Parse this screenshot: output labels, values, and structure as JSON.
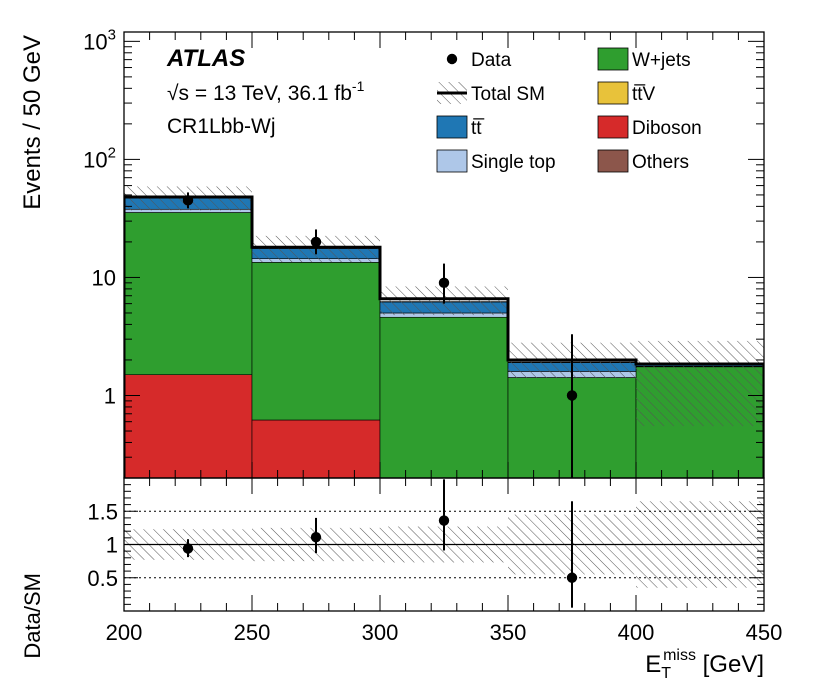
{
  "chart_data": {
    "type": "stacked-histogram-with-ratio",
    "experiment": "ATLAS",
    "energy_label": "√s = 13 TeV, 36.1 fb",
    "lumi_superscript": "-1",
    "region": "CR1Lbb-Wj",
    "ylabel": "Events / 50 GeV",
    "xlabel_main": "E",
    "xlabel_sub": "T",
    "xlabel_sup": "miss",
    "xlabel_unit": " [GeV]",
    "ratio_ylabel": "Data/SM",
    "xlim": [
      200,
      450
    ],
    "ylim": [
      0.2,
      1200
    ],
    "ratio_ylim": [
      0,
      2
    ],
    "yscale": "log",
    "x_ticks": [
      "200",
      "250",
      "300",
      "350",
      "400",
      "450"
    ],
    "y_ticks": [
      {
        "value": 1,
        "label": "1"
      },
      {
        "value": 10,
        "label": "10"
      },
      {
        "value": 100,
        "label": "10",
        "sup": "2"
      },
      {
        "value": 1000,
        "label": "10",
        "sup": "3"
      }
    ],
    "ratio_ticks": [
      {
        "value": 0.5,
        "label": "0.5"
      },
      {
        "value": 1,
        "label": "1"
      },
      {
        "value": 1.5,
        "label": "1.5"
      }
    ],
    "bin_edges": [
      200,
      250,
      300,
      350,
      400,
      450
    ],
    "stack": [
      {
        "name": "Diboson",
        "color": "#d62a2a",
        "values": [
          1.5,
          0.62,
          0,
          0,
          0
        ]
      },
      {
        "name": "W+jets",
        "color": "#2f9e2f",
        "values": [
          34,
          12.8,
          4.6,
          1.42,
          1.75
        ]
      },
      {
        "name": "Single top",
        "color": "#aec7e8",
        "values": [
          2.3,
          1.0,
          0.4,
          0.18,
          0.02
        ]
      },
      {
        "name": "tt̅",
        "color": "#1f77b4",
        "values": [
          9.5,
          3.2,
          1.2,
          0.3,
          0.05
        ]
      },
      {
        "name": "tt̅V",
        "color": "#e8c23a",
        "values": [
          0.2,
          0.05,
          0.02,
          0.01,
          0.005
        ]
      },
      {
        "name": "Others",
        "color": "#8c564b",
        "values": [
          0.1,
          0.05,
          0.02,
          0.01,
          0.005
        ]
      }
    ],
    "total_sm": [
      48,
      18,
      6.6,
      2.0,
      1.85
    ],
    "total_sm_band": [
      {
        "low": 37,
        "high": 59
      },
      {
        "low": 13.5,
        "high": 22.5
      },
      {
        "low": 4.8,
        "high": 8.4
      },
      {
        "low": 1.4,
        "high": 2.8
      },
      {
        "low": 0.55,
        "high": 2.9
      }
    ],
    "data_points": [
      {
        "x": 225,
        "y": 45,
        "err_low": 6.5,
        "err_high": 7.5
      },
      {
        "x": 275,
        "y": 20,
        "err_low": 4.3,
        "err_high": 5.5
      },
      {
        "x": 325,
        "y": 9,
        "err_low": 3.0,
        "err_high": 4.1
      },
      {
        "x": 375,
        "y": 1,
        "err_low": 0.9,
        "err_high": 2.3
      }
    ],
    "ratio_points": [
      {
        "x": 225,
        "y": 0.94,
        "err_low": 0.13,
        "err_high": 0.14
      },
      {
        "x": 275,
        "y": 1.11,
        "err_low": 0.24,
        "err_high": 0.29
      },
      {
        "x": 325,
        "y": 1.36,
        "err_low": 0.45,
        "err_high": 0.62
      },
      {
        "x": 375,
        "y": 0.5,
        "err_low": 0.45,
        "err_high": 1.15
      }
    ],
    "ratio_band": [
      {
        "low": 0.77,
        "high": 1.23
      },
      {
        "low": 0.75,
        "high": 1.25
      },
      {
        "low": 0.73,
        "high": 1.27
      },
      {
        "low": 0.55,
        "high": 1.45
      },
      {
        "low": 0.35,
        "high": 1.65
      }
    ],
    "legend": [
      {
        "label": "Data",
        "kind": "marker",
        "column": 0,
        "row": 0
      },
      {
        "label": "Total SM",
        "kind": "line-hatch",
        "column": 0,
        "row": 1
      },
      {
        "label": "tt̅",
        "kind": "box",
        "color": "#1f77b4",
        "column": 0,
        "row": 2
      },
      {
        "label": "Single top",
        "kind": "box",
        "color": "#aec7e8",
        "column": 0,
        "row": 3
      },
      {
        "label": "W+jets",
        "kind": "box",
        "color": "#2f9e2f",
        "column": 1,
        "row": 0
      },
      {
        "label": "tt̅V",
        "kind": "box",
        "color": "#e8c23a",
        "column": 1,
        "row": 1
      },
      {
        "label": "Diboson",
        "kind": "box",
        "color": "#d62a2a",
        "column": 1,
        "row": 2
      },
      {
        "label": "Others",
        "kind": "box",
        "color": "#8c564b",
        "column": 1,
        "row": 3
      }
    ]
  }
}
